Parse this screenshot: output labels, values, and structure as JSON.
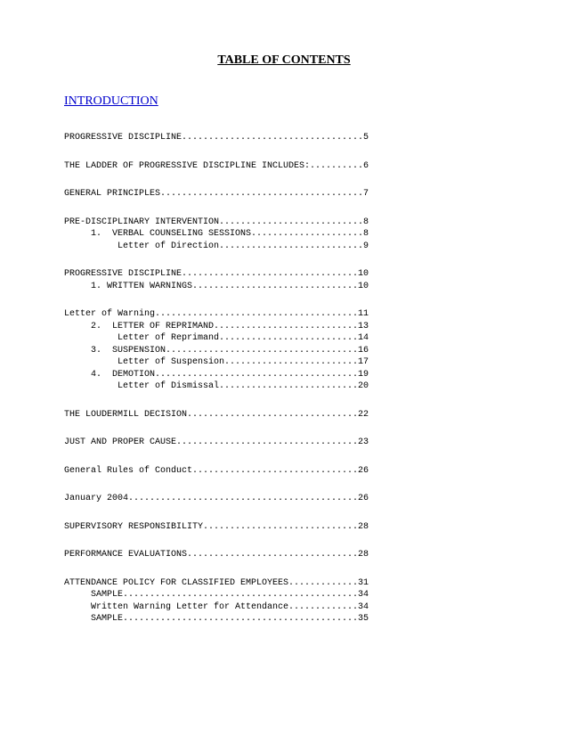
{
  "title": "TABLE OF CONTENTS",
  "intro": "INTRODUCTION",
  "line_width": 57,
  "entries": [
    {
      "indent": 0,
      "label": "PROGRESSIVE DISCIPLINE",
      "page": "5",
      "gap_after": true
    },
    {
      "indent": 0,
      "label": "THE LADDER OF PROGRESSIVE DISCIPLINE INCLUDES:",
      "page": "6",
      "gap_after": true
    },
    {
      "indent": 0,
      "label": "GENERAL PRINCIPLES",
      "page": "7",
      "gap_after": true
    },
    {
      "indent": 0,
      "label": "PRE-DISCIPLINARY INTERVENTION",
      "page": "8",
      "gap_after": false
    },
    {
      "indent": 5,
      "label": "1.  VERBAL COUNSELING SESSIONS",
      "page": "8",
      "gap_after": false
    },
    {
      "indent": 10,
      "label": "Letter of Direction",
      "page": "9",
      "gap_after": true
    },
    {
      "indent": 0,
      "label": "PROGRESSIVE DISCIPLINE",
      "page": "10",
      "gap_after": false
    },
    {
      "indent": 5,
      "label": "1. WRITTEN WARNINGS",
      "page": "10",
      "gap_after": true
    },
    {
      "indent": 0,
      "label": "Letter of Warning",
      "page": "11",
      "gap_after": false
    },
    {
      "indent": 5,
      "label": "2.  LETTER OF REPRIMAND",
      "page": "13",
      "gap_after": false
    },
    {
      "indent": 10,
      "label": "Letter of Reprimand",
      "page": "14",
      "gap_after": false
    },
    {
      "indent": 5,
      "label": "3.  SUSPENSION",
      "page": "16",
      "gap_after": false
    },
    {
      "indent": 10,
      "label": "Letter of Suspension",
      "page": "17",
      "gap_after": false
    },
    {
      "indent": 5,
      "label": "4.  DEMOTION",
      "page": "19",
      "gap_after": false
    },
    {
      "indent": 10,
      "label": "Letter of Dismissal",
      "page": "20",
      "gap_after": true
    },
    {
      "indent": 0,
      "label": "THE LOUDERMILL DECISION",
      "page": "22",
      "gap_after": true
    },
    {
      "indent": 0,
      "label": "JUST AND PROPER CAUSE",
      "page": "23",
      "gap_after": true
    },
    {
      "indent": 0,
      "label": "General Rules of Conduct",
      "page": "26",
      "gap_after": true
    },
    {
      "indent": 0,
      "label": "January 2004",
      "page": "26",
      "gap_after": true
    },
    {
      "indent": 0,
      "label": "SUPERVISORY RESPONSIBILITY",
      "page": "28",
      "gap_after": true
    },
    {
      "indent": 0,
      "label": "PERFORMANCE EVALUATIONS",
      "page": "28",
      "gap_after": true
    },
    {
      "indent": 0,
      "label": "ATTENDANCE POLICY FOR CLASSIFIED EMPLOYEES",
      "page": "31",
      "gap_after": false
    },
    {
      "indent": 5,
      "label": "SAMPLE",
      "page": "34",
      "gap_after": false
    },
    {
      "indent": 5,
      "label": "Written Warning Letter for Attendance",
      "page": "34",
      "gap_after": false
    },
    {
      "indent": 5,
      "label": "SAMPLE",
      "page": "35",
      "gap_after": false
    }
  ]
}
